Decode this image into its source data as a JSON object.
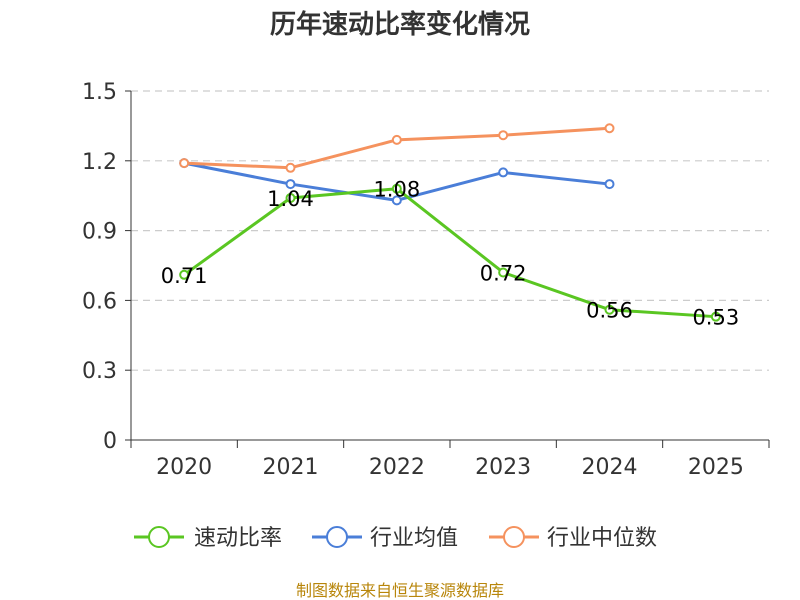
{
  "chart_data": {
    "type": "line",
    "title": "历年速动比率变化情况",
    "categories": [
      "2020",
      "2021",
      "2022",
      "2023",
      "2024",
      "2025"
    ],
    "yticks": [
      "0",
      "0.3",
      "0.6",
      "0.9",
      "1.2",
      "1.5"
    ],
    "ylim": [
      0,
      1.5
    ],
    "series": [
      {
        "name": "速动比率",
        "color": "#5ac622",
        "values": [
          0.71,
          1.04,
          1.08,
          0.72,
          0.56,
          0.53
        ],
        "labels": [
          "0.71",
          "1.04",
          "1.08",
          "0.72",
          "0.56",
          "0.53"
        ]
      },
      {
        "name": "行业均值",
        "color": "#4a7ed8",
        "values": [
          1.19,
          1.1,
          1.03,
          1.15,
          1.1,
          null
        ]
      },
      {
        "name": "行业中位数",
        "color": "#f5925e",
        "values": [
          1.19,
          1.17,
          1.29,
          1.31,
          1.34,
          null
        ]
      }
    ],
    "source": "制图数据来自恒生聚源数据库"
  }
}
